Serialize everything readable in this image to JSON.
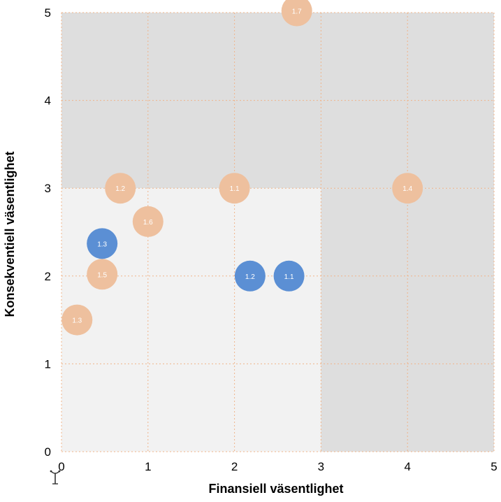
{
  "chart_data": {
    "type": "scatter",
    "xlabel": "Finansiell väsentlighet",
    "ylabel": "Konsekventiell väsentlighet",
    "xlim": [
      0,
      5
    ],
    "ylim": [
      0,
      5
    ],
    "x_ticks": [
      "0",
      "1",
      "2",
      "3",
      "4",
      "5"
    ],
    "y_ticks": [
      "0",
      "1",
      "2",
      "3",
      "4",
      "5"
    ],
    "grid": true,
    "regions": [
      {
        "x": [
          0,
          5
        ],
        "y": [
          3,
          5
        ],
        "color": "#dedede"
      },
      {
        "x": [
          3,
          5
        ],
        "y": [
          0,
          3
        ],
        "color": "#dedede"
      },
      {
        "x": [
          0,
          3
        ],
        "y": [
          0,
          3
        ],
        "color": "#f2f2f2"
      }
    ],
    "series": [
      {
        "color": "#eec09e",
        "points": [
          {
            "label": "1.7",
            "x": 2.72,
            "y": 5.02
          },
          {
            "label": "1.2",
            "x": 0.68,
            "y": 3.0
          },
          {
            "label": "1.1",
            "x": 2.0,
            "y": 3.0
          },
          {
            "label": "1.4",
            "x": 4.0,
            "y": 3.0
          },
          {
            "label": "1.6",
            "x": 1.0,
            "y": 2.62
          },
          {
            "label": "1.5",
            "x": 0.47,
            "y": 2.02
          },
          {
            "label": "1.3",
            "x": 0.18,
            "y": 1.5
          }
        ]
      },
      {
        "color": "#5b8fd4",
        "points": [
          {
            "label": "1.3",
            "x": 0.47,
            "y": 2.37
          },
          {
            "label": "1.2",
            "x": 2.18,
            "y": 2.0
          },
          {
            "label": "1.1",
            "x": 2.63,
            "y": 2.0
          }
        ]
      }
    ]
  },
  "icons": {
    "footer_icon": "pin-icon"
  }
}
